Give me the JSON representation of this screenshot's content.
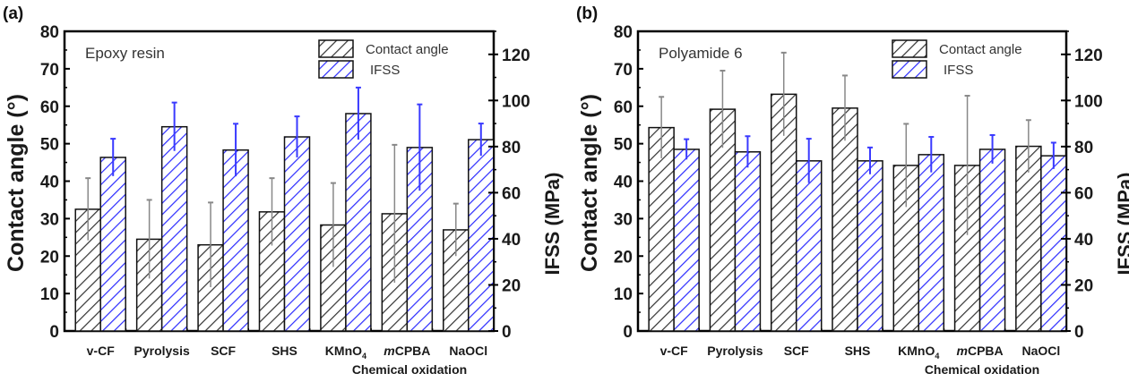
{
  "colors": {
    "contact_angle": "#333333",
    "ifss": "#2b2bff",
    "ca_error": "#888888",
    "ifss_error": "#3a3aff",
    "axis": "#000000"
  },
  "chart_data": [
    {
      "type": "bar",
      "panel_label": "(a)",
      "annotation": "Epoxy resin",
      "categories": [
        "v-CF",
        "Pyrolysis",
        "SCF",
        "SHS",
        "KMnO4",
        "mCPBA",
        "NaOCl"
      ],
      "category_display": [
        {
          "main": "v-CF"
        },
        {
          "main": "Pyrolysis"
        },
        {
          "main": "SCF"
        },
        {
          "main": "SHS"
        },
        {
          "main": "KMnO",
          "sub": "4"
        },
        {
          "italic": "m",
          "main": "CPBA"
        },
        {
          "main": "NaOCl"
        }
      ],
      "xlabel": "Chemical oxidation",
      "ylabel": "Contact angle (°)",
      "y2label": "IFSS (MPa)",
      "ylim": [
        0,
        80
      ],
      "y2lim": [
        0,
        130
      ],
      "yticks": [
        0,
        10,
        20,
        30,
        40,
        50,
        60,
        70,
        80
      ],
      "y2ticks": [
        0,
        20,
        40,
        60,
        80,
        100,
        120
      ],
      "legend": [
        "Contact angle",
        "IFSS"
      ],
      "legend_position": "top-right",
      "series": [
        {
          "name": "Contact angle",
          "axis": "left",
          "values": [
            32.5,
            24.5,
            23.0,
            31.8,
            28.3,
            31.3,
            27.0
          ],
          "error": [
            8.3,
            10.5,
            11.3,
            9.0,
            11.2,
            18.4,
            7.0
          ]
        },
        {
          "name": "IFSS",
          "axis": "right",
          "values": [
            75.3,
            88.6,
            78.5,
            84.2,
            94.3,
            79.6,
            83.0
          ],
          "error": [
            8.1,
            10.5,
            11.4,
            8.9,
            11.3,
            18.7,
            7.0
          ]
        }
      ]
    },
    {
      "type": "bar",
      "panel_label": "(b)",
      "annotation": "Polyamide 6",
      "categories": [
        "v-CF",
        "Pyrolysis",
        "SCF",
        "SHS",
        "KMnO4",
        "mCPBA",
        "NaOCl"
      ],
      "category_display": [
        {
          "main": "v-CF"
        },
        {
          "main": "Pyrolysis"
        },
        {
          "main": "SCF"
        },
        {
          "main": "SHS"
        },
        {
          "main": "KMnO",
          "sub": "4"
        },
        {
          "italic": "m",
          "main": "CPBA"
        },
        {
          "main": "NaOCl"
        }
      ],
      "xlabel": "Chemical oxidation",
      "ylabel": "Contact angle (°)",
      "y2label": "IFSS (MPa)",
      "ylim": [
        0,
        80
      ],
      "y2lim": [
        0,
        130
      ],
      "yticks": [
        0,
        10,
        20,
        30,
        40,
        50,
        60,
        70,
        80
      ],
      "y2ticks": [
        0,
        20,
        40,
        60,
        80,
        100,
        120
      ],
      "legend": [
        "Contact angle",
        "IFSS"
      ],
      "legend_position": "top-right",
      "series": [
        {
          "name": "Contact angle",
          "axis": "left",
          "values": [
            54.3,
            59.2,
            63.2,
            59.5,
            44.2,
            44.2,
            49.3
          ],
          "error": [
            8.2,
            10.3,
            11.1,
            8.7,
            11.1,
            18.6,
            7.0
          ]
        },
        {
          "name": "IFSS",
          "axis": "right",
          "values": [
            78.8,
            77.7,
            73.8,
            73.8,
            76.5,
            78.8,
            76.0
          ],
          "error": [
            4.4,
            6.8,
            9.6,
            5.8,
            7.7,
            6.2,
            5.7
          ]
        }
      ]
    }
  ]
}
